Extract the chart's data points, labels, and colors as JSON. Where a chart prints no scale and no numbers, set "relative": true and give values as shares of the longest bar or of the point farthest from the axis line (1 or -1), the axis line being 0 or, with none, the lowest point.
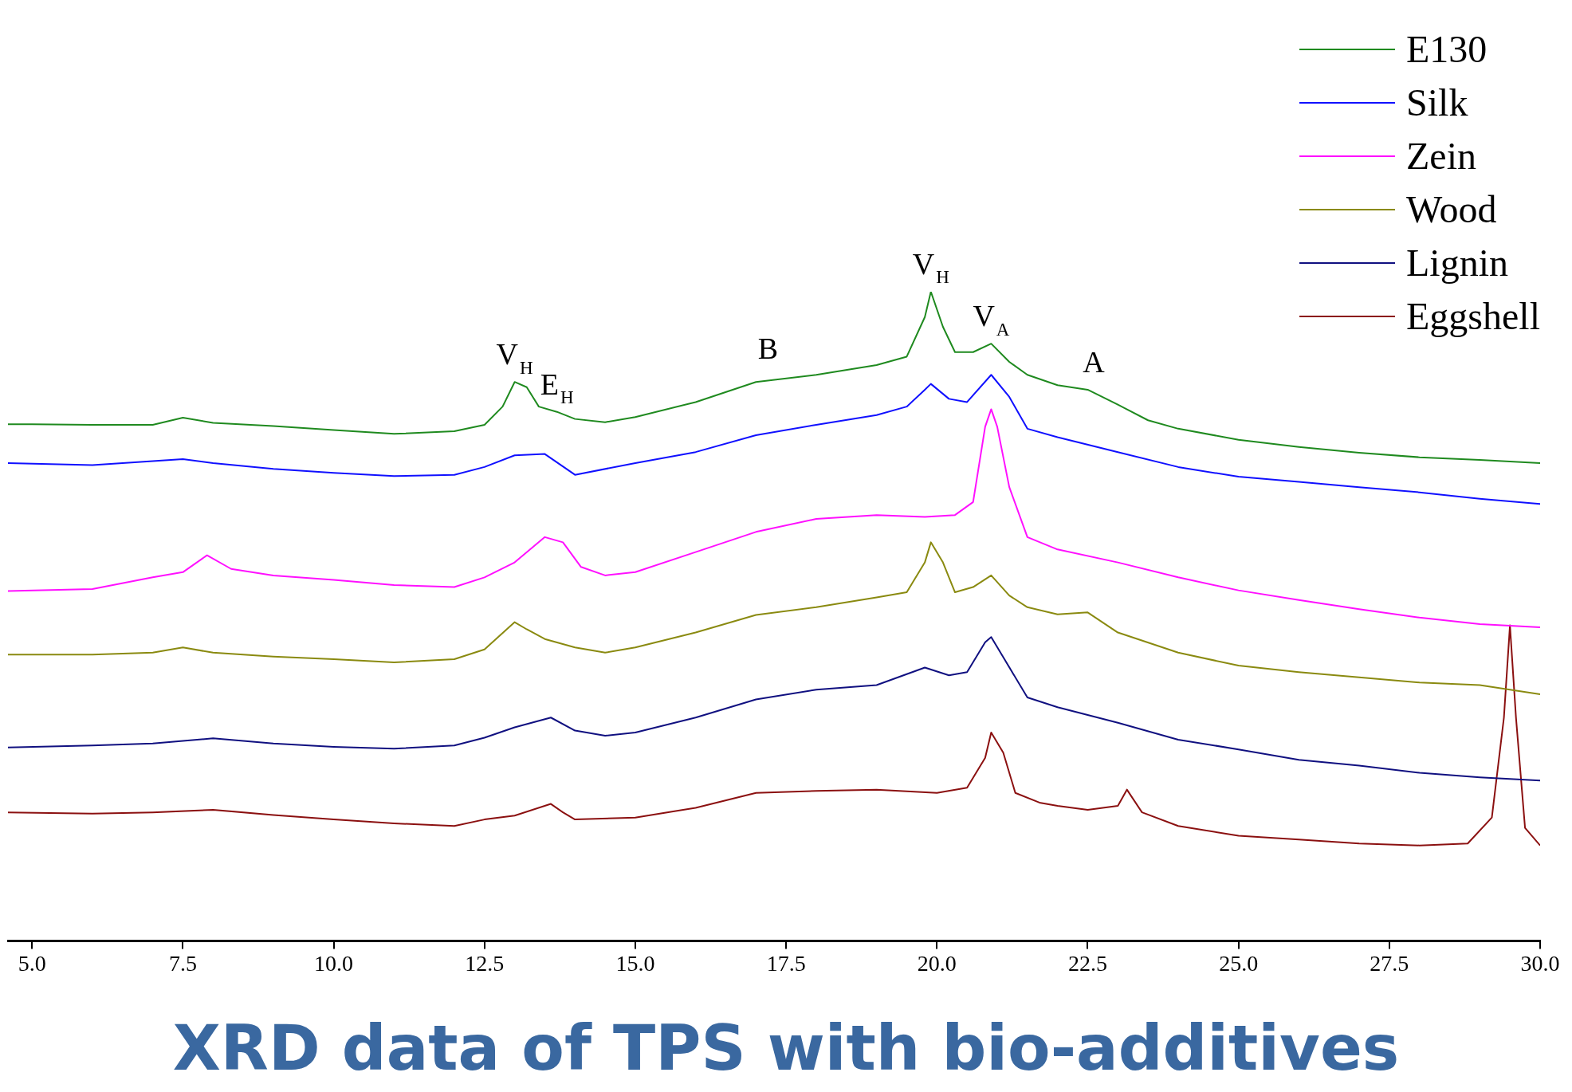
{
  "chart_data": {
    "type": "line",
    "title": "XRD data of TPS with bio-additives",
    "relative": true,
    "legend": "top right",
    "grid": false,
    "marker": "none",
    "line_style": "solid",
    "xlim": [
      4.6,
      30
    ],
    "xticks": [
      {
        "value": 5,
        "label": "5.0"
      },
      {
        "value": 7.5,
        "label": "7.5"
      },
      {
        "value": 10,
        "label": "10.0"
      },
      {
        "value": 12.5,
        "label": "12.5"
      },
      {
        "value": 15,
        "label": "15.0"
      },
      {
        "value": 17.5,
        "label": "17.5"
      },
      {
        "value": 20,
        "label": "20.0"
      },
      {
        "value": 22.5,
        "label": "22.5"
      },
      {
        "value": 25,
        "label": "25.0"
      },
      {
        "value": 27.5,
        "label": "27.5"
      },
      {
        "value": 30,
        "label": "30.0"
      }
    ],
    "series": [
      {
        "name": "E130",
        "color": "#1f8a1f",
        "x": [
          4.6,
          5,
          6,
          7,
          7.5,
          8,
          9,
          10,
          11,
          12,
          12.5,
          12.8,
          13.0,
          13.2,
          13.4,
          13.7,
          14,
          14.5,
          15,
          16,
          17,
          18,
          19,
          19.5,
          19.8,
          19.9,
          20.1,
          20.3,
          20.6,
          20.9,
          21.2,
          21.5,
          22,
          22.5,
          23,
          23.5,
          24,
          25,
          26,
          27,
          28,
          29,
          30
        ],
        "values": [
          0.796,
          0.796,
          0.795,
          0.795,
          0.806,
          0.798,
          0.793,
          0.787,
          0.781,
          0.785,
          0.795,
          0.823,
          0.861,
          0.853,
          0.823,
          0.815,
          0.804,
          0.799,
          0.807,
          0.83,
          0.861,
          0.872,
          0.887,
          0.9,
          0.961,
          1,
          0.946,
          0.907,
          0.907,
          0.92,
          0.892,
          0.872,
          0.856,
          0.849,
          0.826,
          0.802,
          0.789,
          0.772,
          0.761,
          0.752,
          0.745,
          0.741,
          0.736
        ]
      },
      {
        "name": "Silk",
        "color": "#1010ff",
        "x": [
          4.6,
          6,
          7.5,
          8,
          9,
          10,
          11,
          12,
          12.5,
          13.0,
          13.5,
          14,
          15,
          16,
          17,
          18,
          19,
          19.5,
          19.8,
          19.9,
          20.2,
          20.5,
          20.9,
          21.2,
          21.5,
          22,
          23,
          24,
          25,
          26,
          27,
          28,
          29,
          30
        ],
        "values": [
          0.736,
          0.733,
          0.742,
          0.736,
          0.727,
          0.721,
          0.716,
          0.718,
          0.73,
          0.748,
          0.75,
          0.718,
          0.736,
          0.753,
          0.779,
          0.795,
          0.81,
          0.823,
          0.849,
          0.858,
          0.835,
          0.83,
          0.872,
          0.838,
          0.789,
          0.776,
          0.753,
          0.73,
          0.715,
          0.707,
          0.699,
          0.691,
          0.681,
          0.673
        ]
      },
      {
        "name": "Zein",
        "color": "#ff10ff",
        "x": [
          4.6,
          6,
          7,
          7.5,
          7.9,
          8.3,
          9,
          10,
          11,
          12,
          12.5,
          13.0,
          13.5,
          13.8,
          14.1,
          14.5,
          15,
          16,
          17,
          18,
          19,
          19.8,
          20.3,
          20.6,
          20.8,
          20.9,
          21.0,
          21.2,
          21.5,
          22,
          23,
          24,
          25,
          26,
          27,
          28,
          29,
          30
        ],
        "values": [
          0.539,
          0.542,
          0.56,
          0.568,
          0.594,
          0.573,
          0.563,
          0.556,
          0.548,
          0.545,
          0.56,
          0.583,
          0.622,
          0.614,
          0.576,
          0.563,
          0.568,
          0.599,
          0.63,
          0.65,
          0.656,
          0.653,
          0.656,
          0.676,
          0.792,
          0.819,
          0.792,
          0.699,
          0.622,
          0.603,
          0.583,
          0.56,
          0.54,
          0.525,
          0.511,
          0.498,
          0.488,
          0.483
        ]
      },
      {
        "name": "Wood",
        "color": "#8a8a10",
        "x": [
          4.6,
          6,
          7,
          7.5,
          8,
          9,
          10,
          11,
          12,
          12.5,
          13.0,
          13.2,
          13.5,
          14,
          14.5,
          15,
          16,
          17,
          18,
          19,
          19.5,
          19.8,
          19.9,
          20.1,
          20.3,
          20.6,
          20.9,
          21.2,
          21.5,
          22,
          22.5,
          23,
          24,
          25,
          26,
          27,
          28,
          29,
          30
        ],
        "values": [
          0.441,
          0.441,
          0.444,
          0.452,
          0.444,
          0.438,
          0.434,
          0.429,
          0.434,
          0.449,
          0.491,
          0.48,
          0.465,
          0.452,
          0.444,
          0.452,
          0.475,
          0.502,
          0.514,
          0.529,
          0.537,
          0.583,
          0.614,
          0.583,
          0.537,
          0.545,
          0.563,
          0.532,
          0.514,
          0.503,
          0.506,
          0.475,
          0.444,
          0.424,
          0.414,
          0.406,
          0.398,
          0.394,
          0.38
        ]
      },
      {
        "name": "Lignin",
        "color": "#101080",
        "x": [
          4.6,
          6,
          7,
          8,
          9,
          10,
          11,
          12,
          12.5,
          13,
          13.6,
          14,
          14.5,
          15,
          16,
          17,
          18,
          19,
          19.8,
          20.2,
          20.5,
          20.8,
          20.9,
          21.1,
          21.5,
          22,
          23,
          24,
          25,
          26,
          27,
          28,
          29,
          30
        ],
        "values": [
          0.298,
          0.301,
          0.304,
          0.312,
          0.304,
          0.299,
          0.296,
          0.301,
          0.313,
          0.329,
          0.344,
          0.324,
          0.316,
          0.321,
          0.344,
          0.372,
          0.387,
          0.394,
          0.421,
          0.409,
          0.414,
          0.46,
          0.468,
          0.437,
          0.375,
          0.36,
          0.336,
          0.31,
          0.295,
          0.279,
          0.27,
          0.259,
          0.252,
          0.247
        ]
      },
      {
        "name": "Eggshell",
        "color": "#8b1010",
        "x": [
          4.6,
          6,
          7,
          8,
          9,
          10,
          11,
          12,
          12.5,
          13,
          13.6,
          13.8,
          14,
          15,
          16,
          17,
          18,
          19,
          20,
          20.5,
          20.8,
          20.9,
          21.1,
          21.3,
          21.7,
          22,
          22.5,
          23,
          23.15,
          23.4,
          24,
          25,
          26,
          27,
          28,
          28.8,
          29.2,
          29.4,
          29.5,
          29.6,
          29.75,
          30
        ],
        "values": [
          0.198,
          0.196,
          0.198,
          0.202,
          0.194,
          0.187,
          0.181,
          0.177,
          0.187,
          0.193,
          0.211,
          0.198,
          0.187,
          0.19,
          0.205,
          0.228,
          0.231,
          0.233,
          0.228,
          0.236,
          0.282,
          0.321,
          0.29,
          0.228,
          0.213,
          0.208,
          0.202,
          0.208,
          0.233,
          0.198,
          0.177,
          0.162,
          0.156,
          0.15,
          0.147,
          0.15,
          0.19,
          0.344,
          0.486,
          0.344,
          0.174,
          0.147
        ]
      }
    ],
    "annotations": [
      {
        "text": "V$_{H}$",
        "x": 13.0,
        "y": 0.861
      },
      {
        "text": "E$_{H}$",
        "x": 13.7,
        "y": 0.815
      },
      {
        "text": "B",
        "x": 17.2,
        "y": 0.87
      },
      {
        "text": "V$_{H}$",
        "x": 19.9,
        "y": 1
      },
      {
        "text": "V$_{A}$",
        "x": 20.9,
        "y": 0.92
      },
      {
        "text": "A",
        "x": 22.6,
        "y": 0.849
      }
    ]
  }
}
